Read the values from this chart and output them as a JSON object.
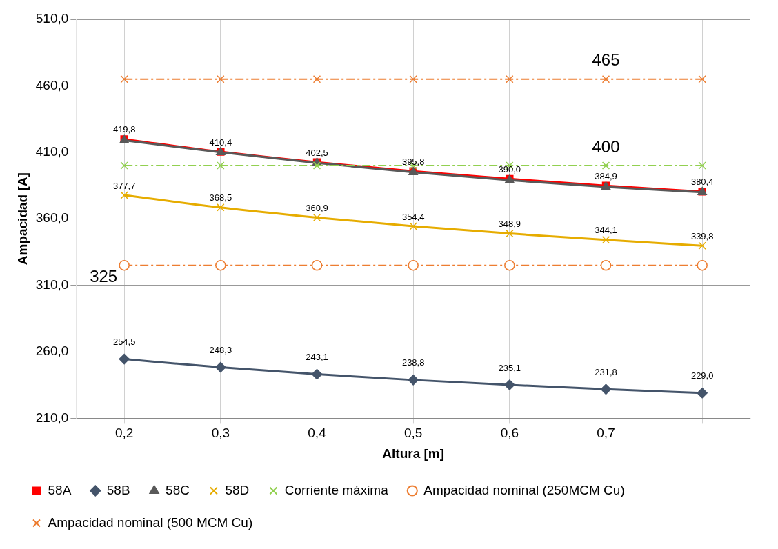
{
  "chart_data": {
    "type": "line",
    "xlabel": "Altura [m]",
    "ylabel": "Ampacidad [A]",
    "categories": [
      "0,2",
      "0,3",
      "0,4",
      "0,5",
      "0,6",
      "0,7",
      null
    ],
    "ylim": [
      210,
      510
    ],
    "yticks": [
      {
        "value": 210,
        "label": "210,0"
      },
      {
        "value": 260,
        "label": "260,0"
      },
      {
        "value": 310,
        "label": "310,0"
      },
      {
        "value": 360,
        "label": "360,0"
      },
      {
        "value": 410,
        "label": "410,0"
      },
      {
        "value": 460,
        "label": "460,0"
      },
      {
        "value": 510,
        "label": "510,0"
      }
    ],
    "grid": true,
    "legend": "bottom",
    "line_style": "solid",
    "series": [
      {
        "name": "58A",
        "color": "#ff0000",
        "marker": "square",
        "values": [
          419.8,
          410.4,
          402.5,
          395.8,
          390.0,
          384.9,
          380.4
        ],
        "value_labels": [
          "419,8",
          "410,4",
          "402,5",
          "395,8",
          "390,0",
          "384,9",
          "380,4"
        ]
      },
      {
        "name": "58B",
        "color": "#44546a",
        "marker": "diamond",
        "values": [
          254.5,
          248.3,
          243.1,
          238.8,
          235.1,
          231.8,
          229.0
        ],
        "value_labels": [
          "254,5",
          "248,3",
          "243,1",
          "238,8",
          "235,1",
          "231,8",
          "229,0"
        ]
      },
      {
        "name": "58C",
        "color": "#595959",
        "marker": "triangle",
        "values": [
          419,
          410,
          402,
          395,
          389,
          384,
          380
        ]
      },
      {
        "name": "58D",
        "color": "#e6ac00",
        "marker": "cross",
        "values": [
          377.7,
          368.5,
          360.9,
          354.4,
          348.9,
          344.1,
          339.8
        ],
        "value_labels": [
          "377,7",
          "368,5",
          "360,9",
          "354,4",
          "348,9",
          "344,1",
          "339,8"
        ]
      },
      {
        "name": "Corriente máxima",
        "color": "#92d050",
        "marker": "cross",
        "line_style": "dashed",
        "values": [
          400,
          400,
          400,
          400,
          400,
          400,
          400
        ]
      },
      {
        "name": "Ampacidad nominal (250MCM Cu)",
        "color": "#ed7d31",
        "marker": "circle",
        "line_style": "dashed",
        "values": [
          325,
          325,
          325,
          325,
          325,
          325,
          325
        ]
      },
      {
        "name": "Ampacidad nominal (500 MCM Cu)",
        "color": "#ed7d31",
        "marker": "cross",
        "line_style": "dashed",
        "values": [
          465,
          465,
          465,
          465,
          465,
          465,
          465
        ]
      }
    ],
    "annotations": [
      {
        "text": "465",
        "x": "0,7",
        "y": 465
      },
      {
        "text": "400",
        "x": "0,7",
        "y": 400
      },
      {
        "text": "325",
        "x": "0,2",
        "y": 325
      }
    ]
  }
}
